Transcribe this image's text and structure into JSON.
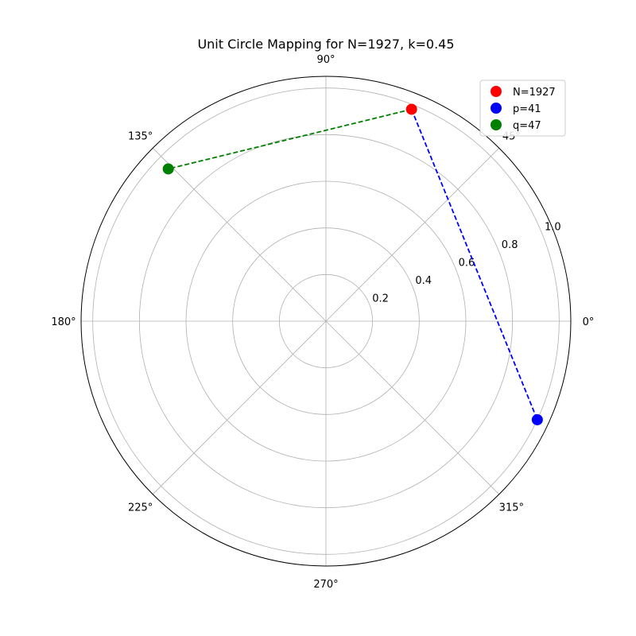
{
  "chart_data": {
    "type": "scatter",
    "projection": "polar",
    "title": "Unit Circle Mapping for N=1927, k=0.45",
    "theta_ticks_deg": [
      0,
      45,
      90,
      135,
      180,
      225,
      270,
      315
    ],
    "theta_tick_labels": [
      "0°",
      "45°",
      "90°",
      "135°",
      "180°",
      "225°",
      "270°",
      "315°"
    ],
    "r_ticks": [
      0.2,
      0.4,
      0.6,
      0.8,
      1.0
    ],
    "r_tick_labels": [
      "0.2",
      "0.4",
      "0.6",
      "0.8",
      "1.0"
    ],
    "rlim": [
      0,
      1.05
    ],
    "grid": true,
    "legend_position": "top-right",
    "series": [
      {
        "name": "N=1927",
        "color": "#ff0000",
        "points": [
          {
            "theta_deg": 68.0,
            "r": 0.98
          }
        ]
      },
      {
        "name": "p=41",
        "color": "#0000ff",
        "points": [
          {
            "theta_deg": 335.0,
            "r": 1.0
          }
        ]
      },
      {
        "name": "q=47",
        "color": "#008000",
        "points": [
          {
            "theta_deg": 136.0,
            "r": 0.94
          }
        ]
      }
    ],
    "lines": [
      {
        "from": "N=1927",
        "to": "p=41",
        "color": "#0000ff",
        "style": "dashed"
      },
      {
        "from": "N=1927",
        "to": "q=47",
        "color": "#008000",
        "style": "dashed"
      }
    ]
  }
}
